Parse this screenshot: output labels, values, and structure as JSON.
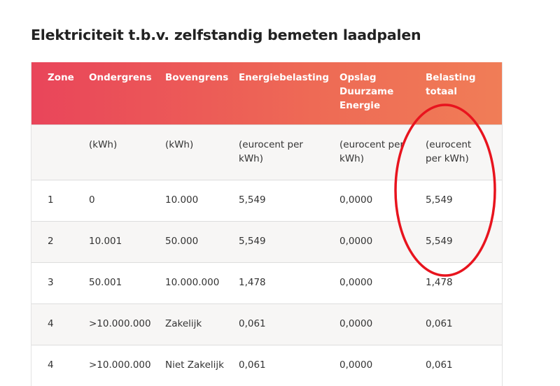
{
  "title": "Elektriciteit t.b.v. zelfstandig bemeten laadpalen",
  "table": {
    "headers": [
      "Zone",
      "Ondergrens",
      "Bovengrens",
      "Energiebelasting",
      "Opslag Duurzame Energie",
      "Belasting totaal"
    ],
    "units": [
      "",
      "(kWh)",
      "(kWh)",
      "(eurocent per kWh)",
      "(eurocent per kWh)",
      "(eurocent per kWh)"
    ],
    "rows": [
      [
        "1",
        "0",
        "10.000",
        "5,549",
        "0,0000",
        "5,549"
      ],
      [
        "2",
        "10.001",
        "50.000",
        "5,549",
        "0,0000",
        "5,549"
      ],
      [
        "3",
        "50.001",
        "10.000.000",
        "1,478",
        "0,0000",
        "1,478"
      ],
      [
        "4",
        ">10.000.000",
        "Zakelijk",
        "0,061",
        "0,0000",
        "0,061"
      ],
      [
        "4",
        ">10.000.000",
        "Niet Zakelijk",
        "0,061",
        "0,0000",
        "0,061"
      ]
    ]
  },
  "annotation_color": "#e8141e"
}
